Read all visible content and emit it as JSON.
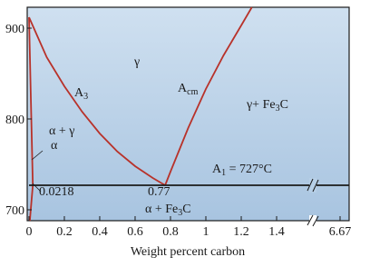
{
  "chart_data": {
    "type": "line",
    "xlabel": "Weight percent carbon",
    "xlim": [
      -0.01,
      1.81
    ],
    "xticks": [
      0,
      0.2,
      0.4,
      0.6,
      0.8,
      1.0,
      1.2,
      1.4
    ],
    "x_end_tick": 6.67,
    "ylim": [
      688,
      923
    ],
    "yticks": [
      700,
      800,
      900
    ],
    "series": [
      {
        "color": "#b8322a",
        "x": [
          0,
          0.1,
          0.2,
          0.3,
          0.4,
          0.5,
          0.6,
          0.7,
          0.77
        ],
        "values": [
          912,
          868,
          836,
          808,
          784,
          764,
          748,
          735,
          727
        ]
      },
      {
        "color": "#b8322a",
        "x": [
          0.77,
          0.8,
          0.9,
          1.0,
          1.1,
          1.2,
          1.26
        ],
        "values": [
          727,
          742,
          790,
          833,
          870,
          903,
          923
        ]
      },
      {
        "color": "#b8322a",
        "x": [
          0,
          0.0218,
          0.005
        ],
        "values": [
          912,
          727,
          688
        ]
      },
      {
        "color": "#1a1a1a",
        "x": [
          0,
          1.81
        ],
        "values": [
          727,
          727
        ]
      }
    ],
    "annotations": [
      [
        {
          "t": "γ"
        }
      ],
      [
        {
          "t": "A"
        },
        {
          "t": "3",
          "sub": true
        }
      ],
      [
        {
          "t": "A"
        },
        {
          "t": "cm",
          "sub": true
        }
      ],
      [
        {
          "t": "γ+ Fe"
        },
        {
          "t": "3",
          "sub": true
        },
        {
          "t": "C"
        }
      ],
      [
        {
          "t": "α + γ"
        }
      ],
      [
        {
          "t": "α"
        }
      ],
      [
        {
          "t": "0.0218"
        }
      ],
      [
        {
          "t": "0.77"
        }
      ],
      [
        {
          "t": "A"
        },
        {
          "t": "1",
          "sub": true
        },
        {
          "t": " = 727°C"
        }
      ],
      [
        {
          "t": "α + Fe"
        },
        {
          "t": "3",
          "sub": true
        },
        {
          "t": "C"
        }
      ]
    ]
  }
}
